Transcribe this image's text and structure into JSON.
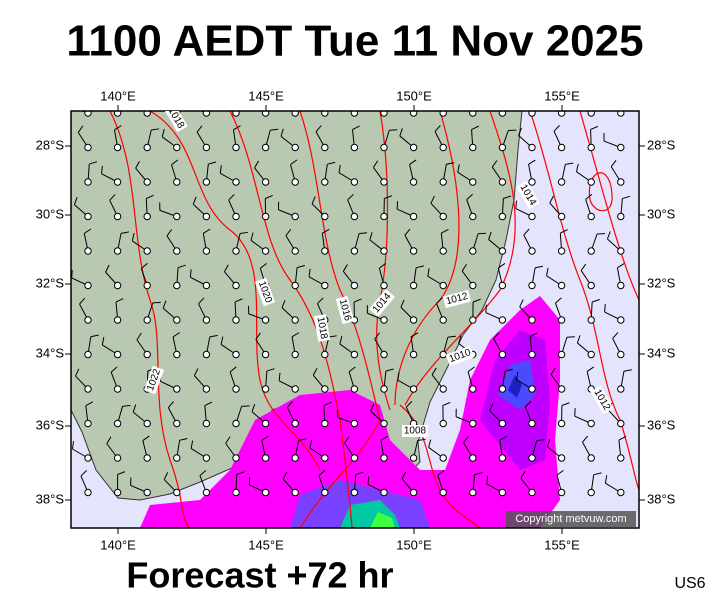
{
  "header": {
    "title": "1100 AEDT Tue 11 Nov 2025"
  },
  "map": {
    "lon_labels": [
      "140°E",
      "145°E",
      "150°E",
      "155°E"
    ],
    "lat_labels": [
      "28°S",
      "30°S",
      "32°S",
      "34°S",
      "36°S",
      "38°S"
    ],
    "isobar_labels": [
      "1018",
      "1014",
      "1020",
      "1016",
      "1014",
      "1012",
      "1018",
      "1022",
      "1010",
      "1008",
      "1012"
    ],
    "copyright": "Copyright metvuw.com"
  },
  "footer": {
    "forecast": "Forecast +72 hr",
    "model": "US6"
  }
}
